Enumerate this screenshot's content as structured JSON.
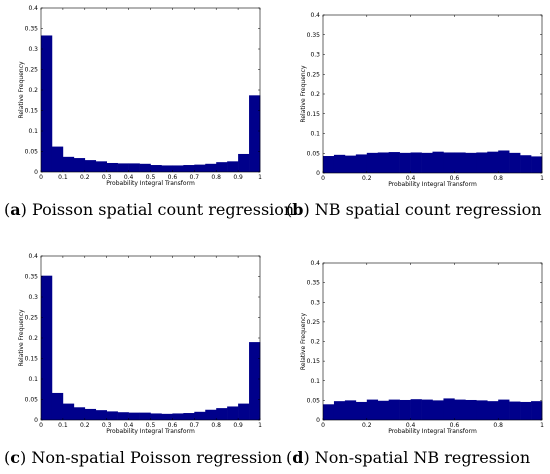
{
  "chart_data": [
    {
      "type": "bar",
      "caption_letter": "a",
      "caption_text": " Poisson spatial count regression",
      "xlabel": "Probability Integral Transform",
      "ylabel": "Relative Frequency",
      "xlim": [
        0,
        1
      ],
      "ylim": [
        0,
        0.4
      ],
      "xticks": [
        "0",
        "0.1",
        "0.2",
        "0.3",
        "0.4",
        "0.5",
        "0.6",
        "0.7",
        "0.8",
        "0.9",
        "1"
      ],
      "yticks": [
        "0",
        "0.05",
        "0.1",
        "0.15",
        "0.2",
        "0.25",
        "0.3",
        "0.35",
        "0.4"
      ],
      "bar_color": "#00008b",
      "bins": 20,
      "values": [
        0.333,
        0.062,
        0.037,
        0.034,
        0.029,
        0.026,
        0.022,
        0.021,
        0.021,
        0.02,
        0.017,
        0.016,
        0.016,
        0.017,
        0.018,
        0.02,
        0.024,
        0.026,
        0.044,
        0.187
      ]
    },
    {
      "type": "bar",
      "caption_letter": "b",
      "caption_text": " NB spatial count regression",
      "xlabel": "Probability Integral Transform",
      "ylabel": "Relative Frequency",
      "xlim": [
        0,
        1
      ],
      "ylim": [
        0,
        0.4
      ],
      "xticks": [
        "0",
        "0.2",
        "0.4",
        "0.6",
        "0.8",
        "1"
      ],
      "yticks": [
        "0",
        "0.05",
        "0.1",
        "0.15",
        "0.2",
        "0.25",
        "0.3",
        "0.35",
        "0.4"
      ],
      "bar_color": "#00008b",
      "bins": 20,
      "values": [
        0.043,
        0.046,
        0.044,
        0.047,
        0.051,
        0.052,
        0.053,
        0.051,
        0.052,
        0.051,
        0.054,
        0.052,
        0.052,
        0.051,
        0.052,
        0.054,
        0.057,
        0.051,
        0.045,
        0.042
      ]
    },
    {
      "type": "bar",
      "caption_letter": "c",
      "caption_text": " Non-spatial Poisson regression",
      "xlabel": "Probability Integral Transform",
      "ylabel": "Relative Frequency",
      "xlim": [
        0,
        1
      ],
      "ylim": [
        0,
        0.4
      ],
      "xticks": [
        "0",
        "0.1",
        "0.2",
        "0.3",
        "0.4",
        "0.5",
        "0.6",
        "0.7",
        "0.8",
        "0.9",
        "1"
      ],
      "yticks": [
        "0",
        "0.05",
        "0.1",
        "0.15",
        "0.2",
        "0.25",
        "0.3",
        "0.35",
        "0.4"
      ],
      "bar_color": "#00008b",
      "bins": 20,
      "values": [
        0.352,
        0.066,
        0.04,
        0.031,
        0.027,
        0.024,
        0.021,
        0.019,
        0.018,
        0.018,
        0.016,
        0.015,
        0.016,
        0.017,
        0.02,
        0.025,
        0.029,
        0.033,
        0.04,
        0.19
      ]
    },
    {
      "type": "bar",
      "caption_letter": "d",
      "caption_text": " Non-spatial NB regression",
      "xlabel": "Probability Integral Transform",
      "ylabel": "Relative Frequency",
      "xlim": [
        0,
        1
      ],
      "ylim": [
        0,
        0.4
      ],
      "xticks": [
        "0",
        "0.2",
        "0.4",
        "0.6",
        "0.8",
        "1"
      ],
      "yticks": [
        "0",
        "0.05",
        "0.1",
        "0.15",
        "0.2",
        "0.25",
        "0.3",
        "0.35",
        "0.4"
      ],
      "bar_color": "#00008b",
      "bins": 20,
      "values": [
        0.04,
        0.048,
        0.05,
        0.046,
        0.052,
        0.049,
        0.052,
        0.051,
        0.053,
        0.052,
        0.05,
        0.055,
        0.052,
        0.051,
        0.05,
        0.048,
        0.052,
        0.047,
        0.046,
        0.048
      ]
    }
  ]
}
